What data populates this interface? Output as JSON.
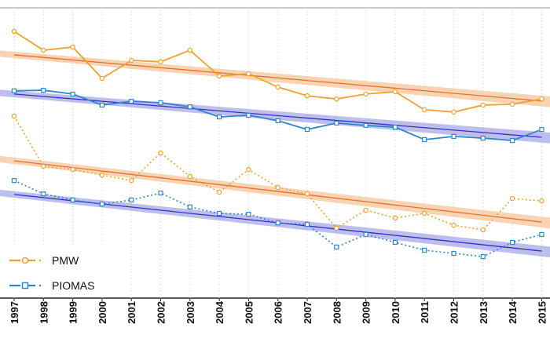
{
  "chart_data": {
    "type": "line",
    "categories": [
      "1997",
      "1998",
      "1999",
      "2000",
      "2001",
      "2002",
      "2003",
      "2004",
      "2005",
      "2006",
      "2007",
      "2008",
      "2009",
      "2010",
      "2011",
      "2012",
      "2013",
      "2014",
      "2015"
    ],
    "ylim": [
      0,
      100
    ],
    "grid": true,
    "legend": "lower left",
    "series": [
      {
        "name": "PMW",
        "color": "#f0a030",
        "marker": "circle",
        "trend_color": "#e07030",
        "band_color": "#f7c9a0",
        "values": [
          91.9,
          85.4,
          86.5,
          75.7,
          81.9,
          81.4,
          85.4,
          76.5,
          77.3,
          72.7,
          69.7,
          68.6,
          70.3,
          71.1,
          64.9,
          64.1,
          66.5,
          66.8,
          68.6
        ],
        "dotted_values": [
          62.7,
          45.4,
          44.3,
          42.4,
          40.5,
          50.0,
          41.9,
          36.5,
          44.3,
          38.1,
          35.9,
          24.1,
          30.3,
          27.6,
          29.2,
          25.1,
          23.5,
          34.3,
          33.5
        ],
        "trend": [
          83.8,
          67.9
        ],
        "dotted_trend": [
          47.3,
          26.2
        ]
      },
      {
        "name": "PIOMAS",
        "color": "#2e86c8",
        "marker": "square",
        "trend_color": "#3030c8",
        "band_color": "#aeaee8",
        "values": [
          71.4,
          71.6,
          70.3,
          66.5,
          67.8,
          67.3,
          65.9,
          62.4,
          63.0,
          61.1,
          58.1,
          60.3,
          59.5,
          58.9,
          54.6,
          55.7,
          55.1,
          54.3,
          58.1
        ],
        "dotted_values": [
          40.5,
          35.9,
          33.8,
          32.4,
          33.8,
          36.2,
          31.4,
          29.2,
          28.9,
          25.9,
          25.4,
          17.6,
          21.9,
          19.2,
          16.5,
          15.4,
          14.3,
          19.2,
          21.9
        ],
        "trend": [
          70.3,
          55.4
        ],
        "dotted_trend": [
          35.7,
          16.2
        ]
      }
    ]
  }
}
